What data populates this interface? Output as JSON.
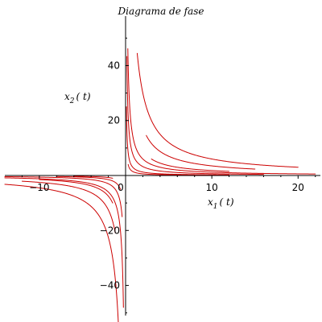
{
  "chart_data": {
    "type": "line",
    "title": "Diagrama de fase",
    "xlabel": {
      "var": "x",
      "sub": "1",
      "arg": "( t)"
    },
    "ylabel": {
      "var": "x",
      "sub": "2",
      "arg": "( t)"
    },
    "xlim": [
      -14,
      22
    ],
    "ylim": [
      -55,
      58
    ],
    "x_ticks": [
      -10,
      0,
      10,
      20
    ],
    "x_tick_labels": [
      "−10",
      "0",
      "10",
      "20"
    ],
    "y_ticks": [
      -40,
      -20,
      20,
      40
    ],
    "y_tick_labels": [
      "−40",
      "−20",
      "20",
      "40"
    ],
    "grid": false,
    "line_color": "#cc0000",
    "series": [
      {
        "branches": [
          {
            "k": 12,
            "xr": [
              -14,
              -0.25
            ]
          },
          {
            "k": 12,
            "xr": [
              0.26,
              22
            ]
          }
        ]
      },
      {
        "branches": [
          {
            "k": 6,
            "xr": [
              -14,
              -0.4
            ]
          },
          {
            "k": 6.5,
            "xr": [
              0.15,
              16
            ]
          }
        ]
      },
      {
        "branches": [
          {
            "k": 3,
            "xr": [
              -8,
              -0.6
            ]
          },
          {
            "k": 2.5,
            "xr": [
              0.1,
              12
            ]
          }
        ]
      },
      {
        "branches": [
          {
            "k": 1.5,
            "xr": [
              -6,
              -1.5
            ]
          },
          {
            "k": 1.2,
            "xr": [
              0.3,
              8
            ]
          }
        ]
      },
      {
        "branches": [
          {
            "k": 45,
            "xr": [
              -14,
              -0.75
            ]
          },
          {
            "k": 60,
            "xr": [
              1.35,
              20
            ]
          }
        ]
      },
      {
        "branches": [
          {
            "k": 25,
            "xr": [
              -12,
              -1.2
            ]
          },
          {
            "k": 35,
            "xr": [
              2.4,
              15
            ]
          }
        ]
      },
      {
        "branches": [
          {
            "k": 15,
            "xr": [
              -10,
              -1.5
            ]
          },
          {
            "k": 18,
            "xr": [
              3.0,
              12
            ]
          }
        ]
      }
    ]
  }
}
